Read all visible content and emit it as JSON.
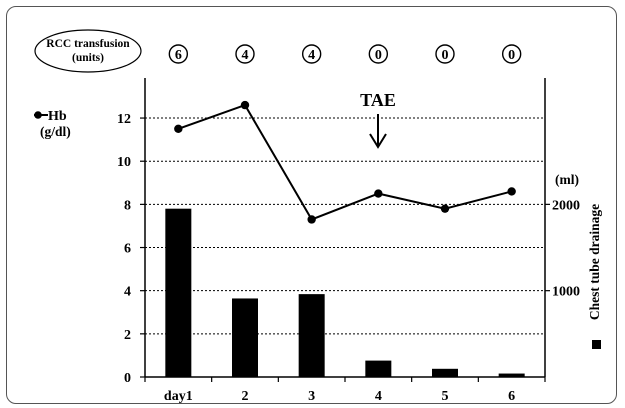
{
  "chart_data": {
    "type": "bar+line",
    "categories": [
      "day1",
      "2",
      "3",
      "4",
      "5",
      "6"
    ],
    "series": [
      {
        "name": "Hb",
        "kind": "line",
        "axis": "left",
        "values": [
          11.5,
          12.6,
          7.3,
          8.5,
          7.8,
          8.6
        ]
      },
      {
        "name": "Chest tube drainage",
        "kind": "bar",
        "axis": "right",
        "values": [
          1950,
          910,
          960,
          190,
          95,
          40
        ]
      }
    ],
    "left_axis": {
      "label_line1": "Hb",
      "label_line2": "(g/dl)",
      "ticks": [
        0,
        2,
        4,
        6,
        8,
        10,
        12
      ],
      "ylim": [
        0,
        13.3
      ]
    },
    "right_axis": {
      "label": "(ml)",
      "ticks": [
        1000,
        2000
      ],
      "ylim": [
        0,
        3325
      ]
    },
    "right_series_label": "Chest tube drainage",
    "rcc": {
      "label_line1": "RCC transfusion",
      "label_line2": "(units)",
      "values": [
        "6",
        "4",
        "4",
        "0",
        "0",
        "0"
      ]
    },
    "annotation": {
      "text": "TAE",
      "at_category": "4"
    },
    "grid": "horizontal-dotted",
    "colors": {
      "line": "#000000",
      "bar": "#000000",
      "grid": "#000000"
    }
  }
}
